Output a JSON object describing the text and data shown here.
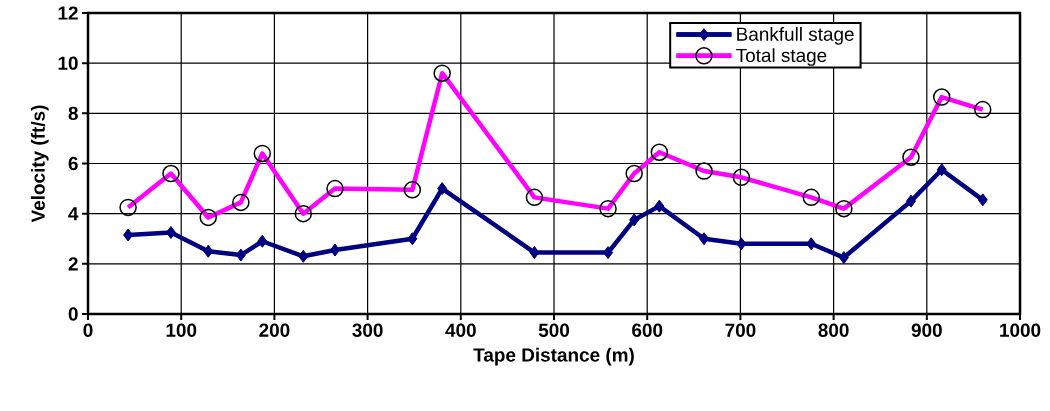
{
  "chart_data": {
    "type": "line",
    "xlabel": "Tape Distance (m)",
    "ylabel": "Velocity (ft/s)",
    "x": [
      43,
      89,
      129,
      164,
      187,
      231,
      265,
      348,
      380,
      479,
      558,
      586,
      613,
      661,
      701,
      776,
      811,
      883,
      916,
      960
    ],
    "series": [
      {
        "name": "Bankfull stage",
        "color": "#000080",
        "marker": "diamond",
        "values": [
          3.15,
          3.25,
          2.5,
          2.35,
          2.9,
          2.3,
          2.55,
          3.0,
          5.0,
          2.45,
          2.45,
          3.75,
          4.3,
          3.0,
          2.8,
          2.8,
          2.25,
          4.5,
          5.75,
          4.55
        ]
      },
      {
        "name": "Total stage",
        "color": "#ff00ff",
        "marker": "circle",
        "values": [
          4.25,
          5.6,
          3.85,
          4.45,
          6.4,
          4.0,
          5.0,
          4.95,
          9.6,
          4.65,
          4.2,
          5.6,
          6.45,
          5.7,
          5.45,
          4.65,
          4.2,
          6.25,
          8.65,
          8.15
        ]
      }
    ],
    "xlim": [
      0,
      1000
    ],
    "xticks": [
      0,
      100,
      200,
      300,
      400,
      500,
      600,
      700,
      800,
      900,
      1000
    ],
    "ylim": [
      0,
      12
    ],
    "yticks": [
      0,
      2,
      4,
      6,
      8,
      10,
      12
    ],
    "grid": true,
    "legend": "top right",
    "line_style": "solid"
  }
}
